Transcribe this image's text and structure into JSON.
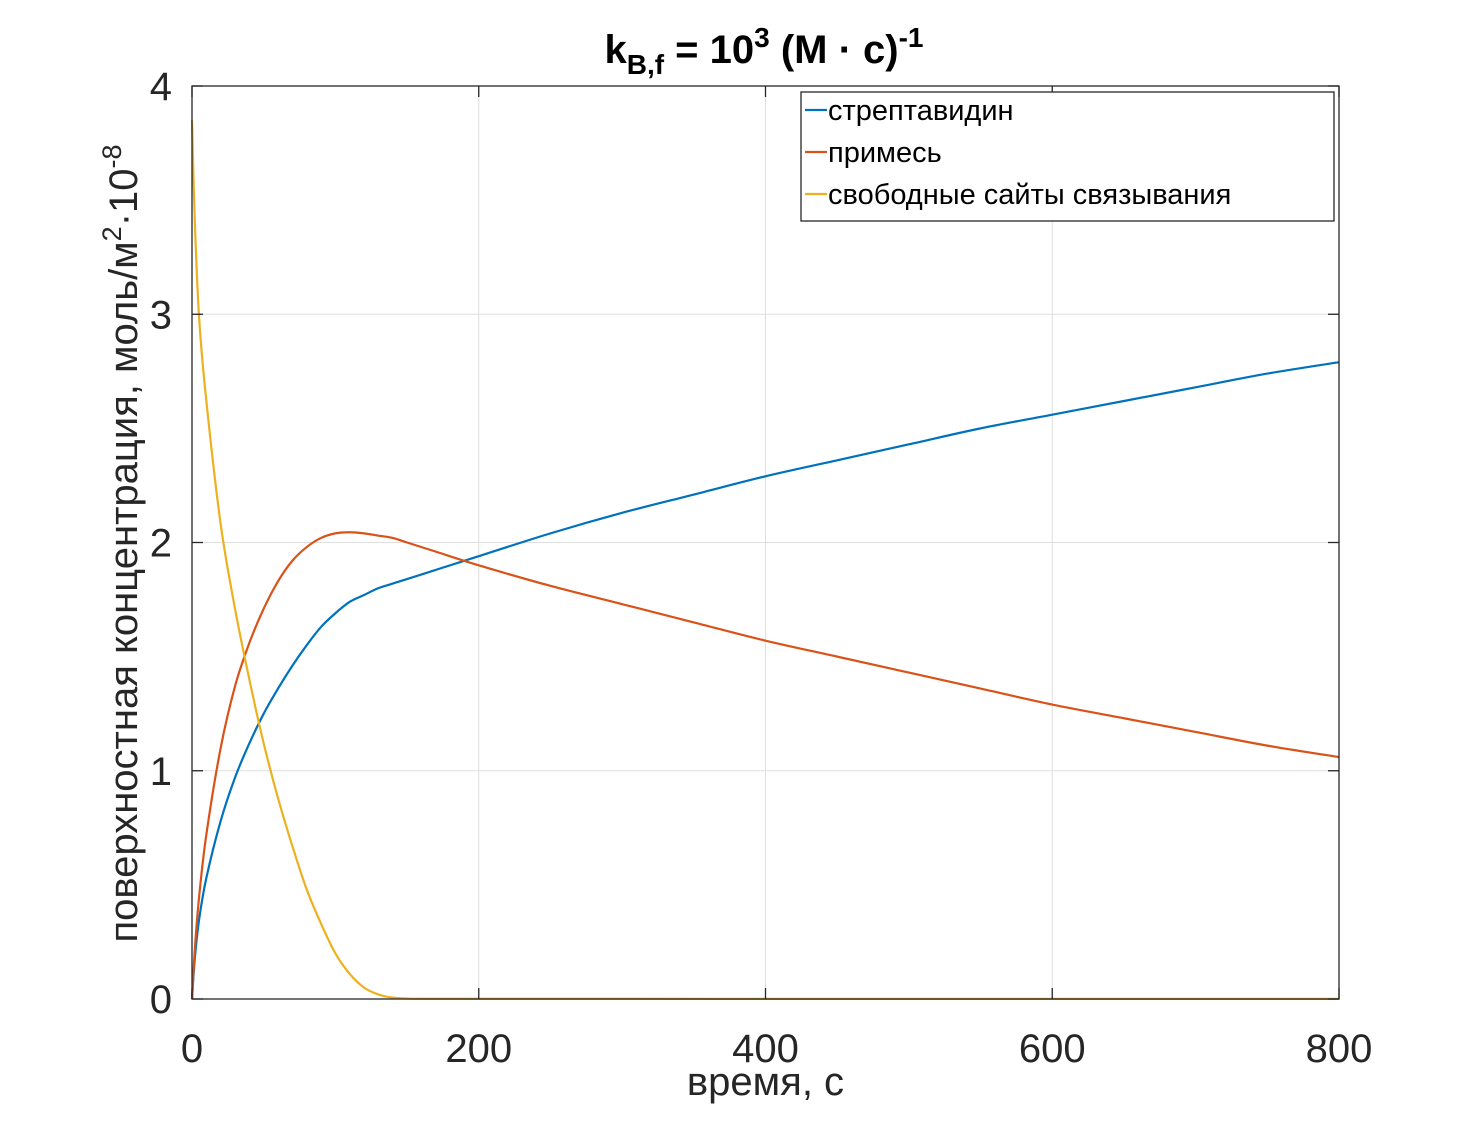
{
  "chart_data": {
    "type": "line",
    "title": {
      "main": "k",
      "subscript": "B,f",
      "equals": " = 10",
      "exp": "3",
      "unit": " (M · c)",
      "unit_exp": "-1"
    },
    "xlabel": "время, с",
    "ylabel": {
      "text": "поверхностная концентрация, моль/м",
      "sup1": "2",
      "mid": "·10",
      "sup2": "-8"
    },
    "xlim": [
      0,
      800
    ],
    "ylim": [
      0,
      4
    ],
    "xticks": [
      0,
      200,
      400,
      600,
      800
    ],
    "yticks": [
      0,
      1,
      2,
      3,
      4
    ],
    "grid": true,
    "legend_position": "top-right",
    "series": [
      {
        "name": "стрептавидин",
        "color": "#0072BD",
        "x": [
          0,
          2,
          5,
          10,
          20,
          30,
          40,
          50,
          60,
          70,
          80,
          90,
          100,
          110,
          120,
          130,
          140,
          150,
          170,
          200,
          250,
          300,
          350,
          400,
          450,
          500,
          550,
          600,
          650,
          700,
          750,
          800
        ],
        "y": [
          0,
          0.18,
          0.35,
          0.53,
          0.78,
          0.97,
          1.12,
          1.25,
          1.36,
          1.46,
          1.55,
          1.63,
          1.69,
          1.74,
          1.77,
          1.8,
          1.82,
          1.84,
          1.88,
          1.94,
          2.04,
          2.13,
          2.21,
          2.29,
          2.36,
          2.43,
          2.5,
          2.56,
          2.62,
          2.68,
          2.74,
          2.79
        ]
      },
      {
        "name": "примесь",
        "color": "#D95319",
        "x": [
          0,
          2,
          5,
          10,
          20,
          30,
          40,
          50,
          60,
          70,
          80,
          90,
          100,
          110,
          120,
          130,
          140,
          150,
          170,
          200,
          250,
          300,
          350,
          400,
          450,
          500,
          550,
          600,
          650,
          700,
          750,
          800
        ],
        "y": [
          0,
          0.22,
          0.45,
          0.72,
          1.1,
          1.37,
          1.56,
          1.71,
          1.83,
          1.92,
          1.98,
          2.02,
          2.04,
          2.045,
          2.04,
          2.03,
          2.02,
          2.0,
          1.96,
          1.9,
          1.81,
          1.73,
          1.65,
          1.57,
          1.5,
          1.43,
          1.36,
          1.29,
          1.23,
          1.17,
          1.11,
          1.06
        ]
      },
      {
        "name": "свободные сайты связывания",
        "color": "#EDB120",
        "x": [
          0,
          2,
          5,
          10,
          20,
          30,
          40,
          50,
          60,
          70,
          80,
          90,
          100,
          110,
          120,
          130,
          140,
          150,
          170,
          200,
          250,
          300,
          400,
          500,
          600,
          700,
          800
        ],
        "y": [
          3.85,
          3.4,
          2.98,
          2.62,
          2.08,
          1.71,
          1.4,
          1.12,
          0.88,
          0.67,
          0.48,
          0.33,
          0.2,
          0.11,
          0.05,
          0.02,
          0.006,
          0.002,
          0.001,
          0.001,
          0.001,
          0.001,
          0.0005,
          0.0005,
          0.0005,
          0.0005,
          0.0005
        ]
      }
    ]
  }
}
